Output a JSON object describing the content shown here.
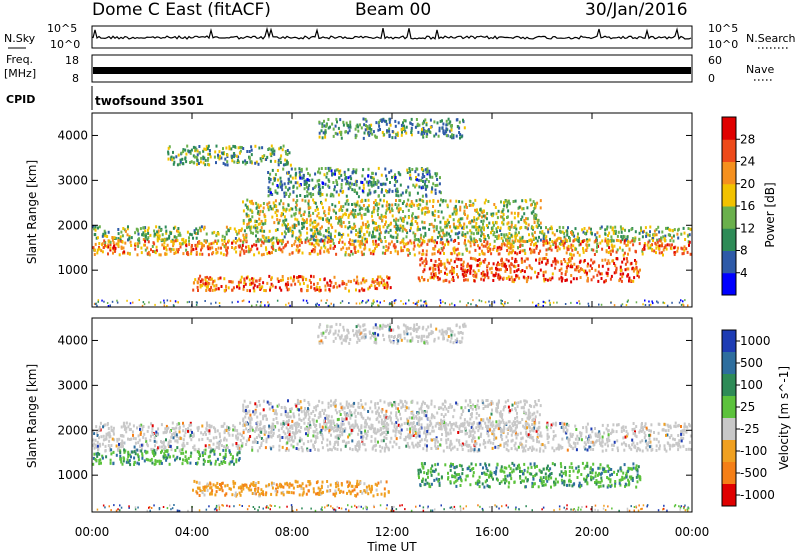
{
  "header": {
    "station": "Dome C East (fitACF)",
    "beam": "Beam 00",
    "date": "30/Jan/2016"
  },
  "status_panels": {
    "nsky_label": "N.Sky",
    "nsky_ticks": [
      "10^5",
      "10^0"
    ],
    "nsearch_label": "N.Search",
    "nsearch_ticks": [
      "10^5",
      "10^0"
    ],
    "freq_label_line1": "Freq.",
    "freq_label_line2": "[MHz]",
    "freq_ticks": [
      "18",
      "8"
    ],
    "nave_label": "Nave",
    "nave_ticks": [
      "60",
      "0"
    ],
    "cpid_label": "CPID",
    "cpid_value": "twofsound 3501"
  },
  "colors": {
    "power_scale": [
      "#0000ff",
      "#2e5aa8",
      "#2e8b57",
      "#6ab04c",
      "#f2c200",
      "#f5901e",
      "#ee4a1a",
      "#e00000"
    ],
    "velocity_scale": [
      "#1e3cb4",
      "#2e6e9e",
      "#2e8b57",
      "#5cc23c",
      "#c8c8c8",
      "#f0a020",
      "#f57f17",
      "#e00000"
    ]
  },
  "chart_data": [
    {
      "type": "heatmap",
      "name_panel": "power",
      "xlabel": "Time UT",
      "ylabel": "Slant Range [km]",
      "x_ticks": [
        "00:00",
        "04:00",
        "08:00",
        "12:00",
        "16:00",
        "20:00",
        "00:00"
      ],
      "xlim": [
        0,
        24
      ],
      "y_ticks": [
        1000,
        2000,
        3000,
        4000
      ],
      "ylim": [
        180,
        4500
      ],
      "colorbar_label": "Power [dB]",
      "colorbar_ticks": [
        4,
        8,
        12,
        16,
        20,
        24,
        28
      ],
      "colorbar_range": [
        0,
        32
      ],
      "scatter_bands": [
        {
          "t": [
            0,
            24
          ],
          "r": [
            1600,
            2000
          ],
          "value": 14
        },
        {
          "t": [
            0,
            24
          ],
          "r": [
            1300,
            1700
          ],
          "value": 22
        },
        {
          "t": [
            4,
            12
          ],
          "r": [
            500,
            900
          ],
          "value": 24
        },
        {
          "t": [
            13,
            22
          ],
          "r": [
            700,
            1300
          ],
          "value": 26
        },
        {
          "t": [
            6,
            18
          ],
          "r": [
            1900,
            2600
          ],
          "value": 16
        },
        {
          "t": [
            7,
            14
          ],
          "r": [
            2600,
            3300
          ],
          "value": 10
        },
        {
          "t": [
            3,
            8
          ],
          "r": [
            3300,
            3800
          ],
          "value": 12
        },
        {
          "t": [
            9,
            15
          ],
          "r": [
            3900,
            4400
          ],
          "value": 11
        }
      ]
    },
    {
      "type": "heatmap",
      "name_panel": "velocity",
      "xlabel": "Time UT",
      "ylabel": "Slant Range [km]",
      "x_ticks": [
        "00:00",
        "04:00",
        "08:00",
        "12:00",
        "16:00",
        "20:00",
        "00:00"
      ],
      "xlim": [
        0,
        24
      ],
      "y_ticks": [
        1000,
        2000,
        3000,
        4000
      ],
      "ylim": [
        180,
        4500
      ],
      "colorbar_label": "Velocity [m s^-1]",
      "colorbar_unit_superscript": "-1",
      "colorbar_ticks": [
        "1000",
        "500",
        "100",
        "25",
        "-25",
        "-100",
        "-500",
        "-1000"
      ],
      "scatter_bands": [
        {
          "t": [
            0,
            24
          ],
          "r": [
            1500,
            2200
          ],
          "value": 0
        },
        {
          "t": [
            4,
            12
          ],
          "r": [
            500,
            900
          ],
          "value": -200
        },
        {
          "t": [
            13,
            22
          ],
          "r": [
            700,
            1300
          ],
          "value": 150
        },
        {
          "t": [
            0,
            6
          ],
          "r": [
            1200,
            1600
          ],
          "value": 80
        },
        {
          "t": [
            6,
            18
          ],
          "r": [
            1900,
            2700
          ],
          "value": 0
        },
        {
          "t": [
            9,
            15
          ],
          "r": [
            3900,
            4400
          ],
          "value": 0
        }
      ]
    }
  ]
}
